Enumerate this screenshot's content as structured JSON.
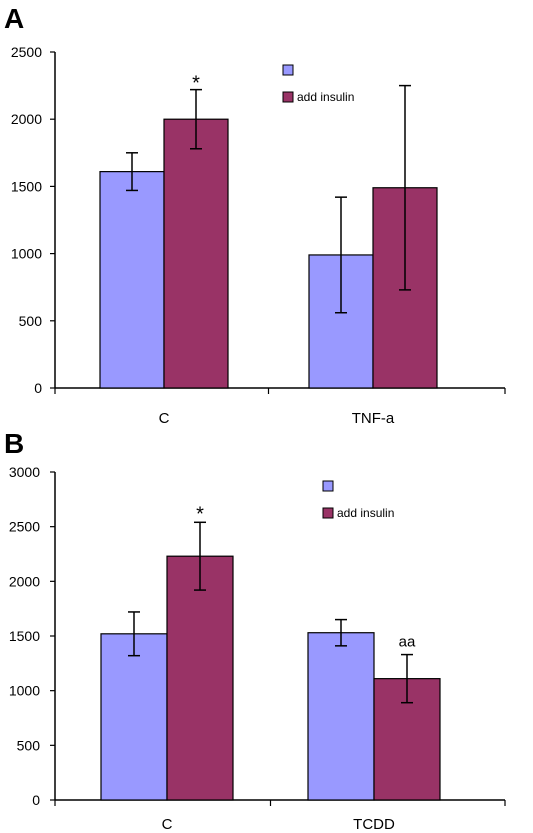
{
  "colors": {
    "base": "#9999ff",
    "insulin": "#993366",
    "axis": "#000000"
  },
  "chart_data": [
    {
      "type": "bar",
      "panel_label": "A",
      "categories": [
        "C",
        "TNF-a"
      ],
      "ylim": [
        0,
        2500
      ],
      "yticks": [
        0,
        500,
        1000,
        1500,
        2000,
        2500
      ],
      "series": [
        {
          "name": "",
          "color": "#9999ff",
          "values": [
            1610,
            990
          ],
          "errors": [
            140,
            430
          ]
        },
        {
          "name": "add insulin",
          "color": "#993366",
          "values": [
            2000,
            1490
          ],
          "errors": [
            220,
            760
          ]
        }
      ],
      "annotations": [
        {
          "category": 0,
          "series": 1,
          "text": "*"
        }
      ],
      "legend": "top-right"
    },
    {
      "type": "bar",
      "panel_label": "B",
      "categories": [
        "C",
        "TCDD"
      ],
      "ylim": [
        0,
        3000
      ],
      "yticks": [
        0,
        500,
        1000,
        1500,
        2000,
        2500,
        3000
      ],
      "series": [
        {
          "name": "",
          "color": "#9999ff",
          "values": [
            1520,
            1530
          ],
          "errors": [
            200,
            120
          ]
        },
        {
          "name": "add insulin",
          "color": "#993366",
          "values": [
            2230,
            1110
          ],
          "errors": [
            310,
            220
          ]
        }
      ],
      "annotations": [
        {
          "category": 0,
          "series": 1,
          "text": "*"
        },
        {
          "category": 1,
          "series": 1,
          "text": "aa"
        }
      ],
      "legend": "top-right"
    }
  ]
}
